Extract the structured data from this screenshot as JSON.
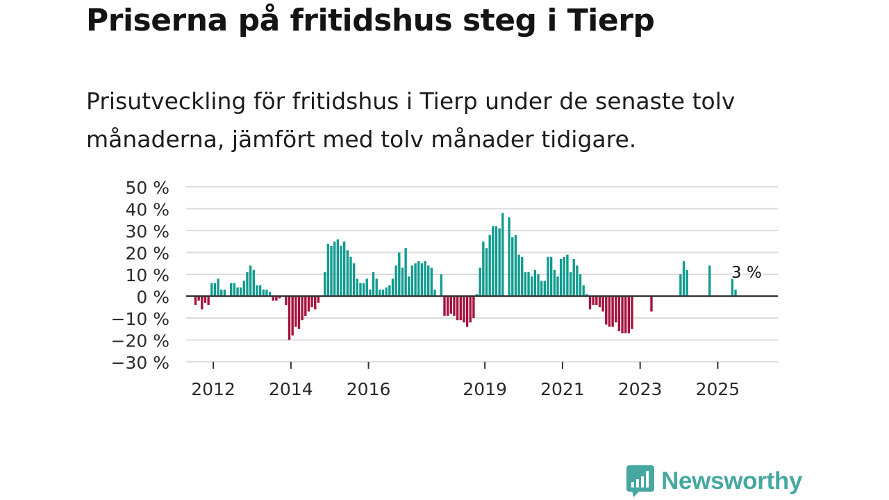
{
  "header": {
    "title": "Priserna på fritidshus steg i Tierp",
    "subtitle": "Prisutveckling för fritidshus i Tierp under de senaste tolv månaderna, jämfört med tolv månader tidigare."
  },
  "chart_data": {
    "type": "bar",
    "title": "Priserna på fritidshus steg i Tierp",
    "subtitle": "Prisutveckling för fritidshus i Tierp under de senaste tolv månaderna, jämfört med tolv månader tidigare.",
    "ylabel": "",
    "xlabel": "",
    "ylim": [
      -30,
      50
    ],
    "yticks": [
      -30,
      -20,
      -10,
      0,
      10,
      20,
      30,
      40,
      50
    ],
    "ytick_labels": [
      "−30 %",
      "−20 %",
      "−10 %",
      "0 %",
      "10 %",
      "20 %",
      "30 %",
      "40 %",
      "50 %"
    ],
    "xticks": [
      2012,
      2014,
      2016,
      2019,
      2021,
      2023,
      2025
    ],
    "xtick_labels": [
      "2012",
      "2014",
      "2016",
      "2019",
      "2021",
      "2023",
      "2025"
    ],
    "x_start": "2011-07",
    "frequency": "monthly",
    "positive_color": "#0f9b8e",
    "negative_color": "#a50f3c",
    "values": [
      -4,
      -2,
      -6,
      -3,
      -4,
      6,
      6,
      8,
      3,
      3,
      null,
      6,
      6,
      4,
      4,
      7,
      11,
      14,
      12,
      5,
      5,
      3,
      3,
      2,
      -2,
      -2,
      -1,
      null,
      -4,
      -20,
      -18,
      -14,
      -15,
      -11,
      -9,
      -7,
      -5,
      -6,
      -3,
      null,
      11,
      24,
      23,
      25,
      26,
      23,
      25,
      21,
      18,
      15,
      8,
      6,
      6,
      8,
      3,
      11,
      8,
      3,
      3,
      4,
      5,
      8,
      14,
      20,
      13,
      22,
      9,
      14,
      15,
      16,
      15,
      16,
      14,
      13,
      3,
      null,
      10,
      -9,
      -9,
      -8,
      -9,
      -11,
      -11,
      -12,
      -14,
      -12,
      -10,
      1,
      13,
      25,
      22,
      28,
      32,
      32,
      31,
      38,
      null,
      36,
      27,
      28,
      19,
      18,
      11,
      11,
      9,
      12,
      10,
      7,
      7,
      18,
      18,
      12,
      9,
      17,
      18,
      19,
      11,
      17,
      14,
      10,
      5,
      1,
      -6,
      -4,
      -4,
      -5,
      -7,
      -13,
      -14,
      -14,
      -12,
      -16,
      -17,
      -17,
      -17,
      -15,
      null,
      null,
      null,
      null,
      null,
      -7,
      null,
      null,
      null,
      null,
      null,
      null,
      null,
      null,
      10,
      16,
      12,
      null,
      null,
      null,
      null,
      null,
      null,
      14,
      null,
      null,
      null,
      null,
      null,
      null,
      9,
      3
    ],
    "annotation": {
      "text": "3 %",
      "value": 3,
      "series_point": "last"
    }
  },
  "brand": {
    "name": "Newsworthy",
    "logo_icon": "bar-chart-speech-bubble-icon"
  }
}
